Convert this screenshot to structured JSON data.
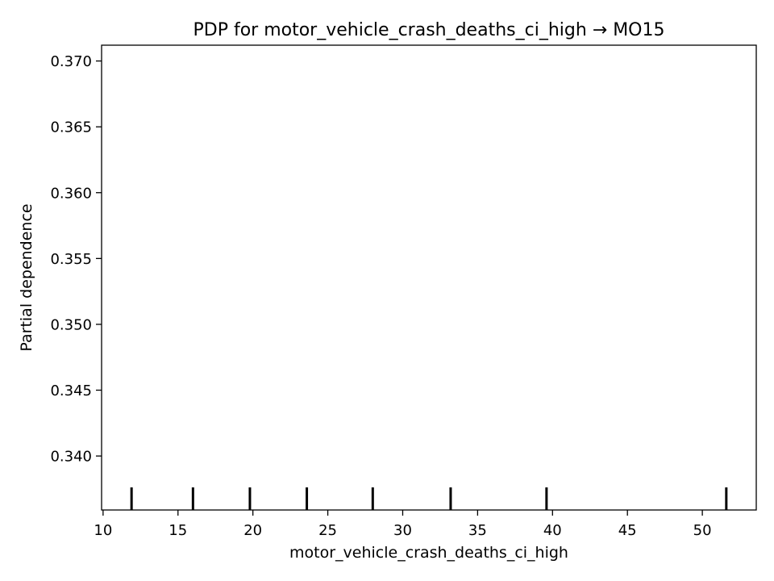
{
  "chart_data": {
    "type": "line",
    "title": "PDP for motor_vehicle_crash_deaths_ci_high → MO15",
    "xlabel": "motor_vehicle_crash_deaths_ci_high",
    "ylabel": "Partial dependence",
    "xlim": [
      9.9,
      53.6
    ],
    "ylim": [
      0.3359,
      0.3712
    ],
    "xticks": [
      10,
      15,
      20,
      25,
      30,
      35,
      40,
      45,
      50
    ],
    "yticks": [
      0.34,
      0.345,
      0.35,
      0.355,
      0.36,
      0.365,
      0.37
    ],
    "xtick_labels": [
      "10",
      "15",
      "20",
      "25",
      "30",
      "35",
      "40",
      "45",
      "50"
    ],
    "ytick_labels": [
      "0.340",
      "0.345",
      "0.350",
      "0.355",
      "0.360",
      "0.365",
      "0.370"
    ],
    "series": [
      {
        "x": [],
        "y": []
      }
    ],
    "rug": [
      11.9,
      16.0,
      19.8,
      23.6,
      28.0,
      33.2,
      39.6,
      51.6
    ],
    "grid": false,
    "colors": {
      "rug": "#000000",
      "axes": "#000000",
      "background": "#ffffff"
    }
  }
}
